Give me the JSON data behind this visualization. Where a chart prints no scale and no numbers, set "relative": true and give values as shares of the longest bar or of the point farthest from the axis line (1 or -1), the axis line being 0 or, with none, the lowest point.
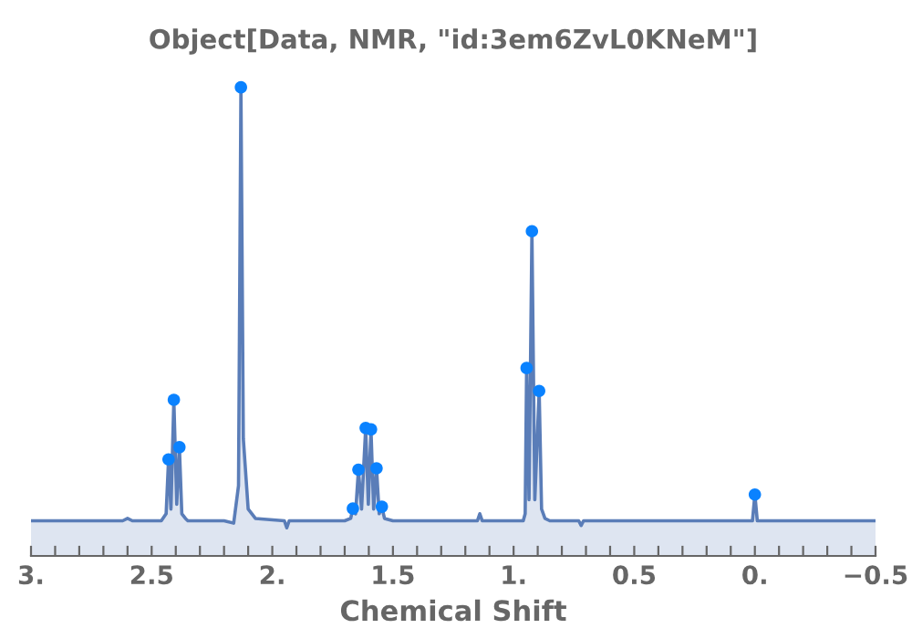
{
  "chart_data": {
    "type": "area",
    "title": "Object[Data, NMR, \"id:3em6ZvL0KNeM\"]",
    "xlabel": "Chemical Shift",
    "relative": true,
    "xlim": [
      3.0,
      -0.5
    ],
    "xticks": [
      {
        "value": 3.0,
        "label": "3."
      },
      {
        "value": 2.9,
        "label": null
      },
      {
        "value": 2.8,
        "label": null
      },
      {
        "value": 2.7,
        "label": null
      },
      {
        "value": 2.6,
        "label": null
      },
      {
        "value": 2.5,
        "label": "2.5"
      },
      {
        "value": 2.4,
        "label": null
      },
      {
        "value": 2.3,
        "label": null
      },
      {
        "value": 2.2,
        "label": null
      },
      {
        "value": 2.1,
        "label": null
      },
      {
        "value": 2.0,
        "label": "2."
      },
      {
        "value": 1.9,
        "label": null
      },
      {
        "value": 1.8,
        "label": null
      },
      {
        "value": 1.7,
        "label": null
      },
      {
        "value": 1.6,
        "label": null
      },
      {
        "value": 1.5,
        "label": "1.5"
      },
      {
        "value": 1.4,
        "label": null
      },
      {
        "value": 1.3,
        "label": null
      },
      {
        "value": 1.2,
        "label": null
      },
      {
        "value": 1.1,
        "label": null
      },
      {
        "value": 1.0,
        "label": "1."
      },
      {
        "value": 0.9,
        "label": null
      },
      {
        "value": 0.8,
        "label": null
      },
      {
        "value": 0.7,
        "label": null
      },
      {
        "value": 0.6,
        "label": null
      },
      {
        "value": 0.5,
        "label": "0.5"
      },
      {
        "value": 0.4,
        "label": null
      },
      {
        "value": 0.3,
        "label": null
      },
      {
        "value": 0.2,
        "label": null
      },
      {
        "value": 0.1,
        "label": null
      },
      {
        "value": 0.0,
        "label": "0."
      },
      {
        "value": -0.1,
        "label": null
      },
      {
        "value": -0.2,
        "label": null
      },
      {
        "value": -0.3,
        "label": null
      },
      {
        "value": -0.4,
        "label": null
      },
      {
        "value": -0.5,
        "label": "−0.5"
      }
    ],
    "tick_labels": "x",
    "grid": false,
    "series": [
      {
        "color": "#5a7db8",
        "marker": "none",
        "x": [
          3.0,
          2.62,
          2.6,
          2.58,
          2.46,
          2.44,
          2.43,
          2.42,
          2.408,
          2.396,
          2.385,
          2.375,
          2.36,
          2.35,
          2.2,
          2.16,
          2.14,
          2.13,
          2.12,
          2.1,
          2.07,
          1.95,
          1.94,
          1.93,
          1.7,
          1.675,
          1.666,
          1.655,
          1.643,
          1.63,
          1.613,
          1.602,
          1.591,
          1.58,
          1.568,
          1.557,
          1.546,
          1.535,
          1.5,
          1.15,
          1.14,
          1.13,
          0.96,
          0.952,
          0.946,
          0.936,
          0.924,
          0.912,
          0.894,
          0.884,
          0.87,
          0.85,
          0.73,
          0.72,
          0.71,
          0.01,
          0.0,
          -0.01,
          -0.5
        ],
        "values": [
          0.075,
          0.075,
          0.08,
          0.075,
          0.075,
          0.09,
          0.206,
          0.1,
          0.333,
          0.11,
          0.232,
          0.09,
          0.08,
          0.075,
          0.075,
          0.07,
          0.15,
          1.0,
          0.25,
          0.1,
          0.08,
          0.075,
          0.06,
          0.075,
          0.075,
          0.08,
          0.101,
          0.09,
          0.184,
          0.1,
          0.273,
          0.11,
          0.27,
          0.1,
          0.187,
          0.09,
          0.105,
          0.08,
          0.075,
          0.075,
          0.09,
          0.075,
          0.075,
          0.09,
          0.401,
          0.12,
          0.693,
          0.12,
          0.352,
          0.1,
          0.08,
          0.075,
          0.075,
          0.065,
          0.075,
          0.075,
          0.131,
          0.075,
          0.075
        ]
      },
      {
        "type": "scatter",
        "color": "#0a82ff",
        "marker": "circle",
        "x": [
          2.43,
          2.408,
          2.385,
          2.13,
          1.666,
          1.643,
          1.613,
          1.591,
          1.568,
          1.546,
          0.946,
          0.924,
          0.894,
          0.0
        ],
        "values": [
          0.206,
          0.333,
          0.232,
          1.0,
          0.101,
          0.184,
          0.273,
          0.27,
          0.187,
          0.105,
          0.401,
          0.693,
          0.352,
          0.131
        ]
      }
    ]
  }
}
